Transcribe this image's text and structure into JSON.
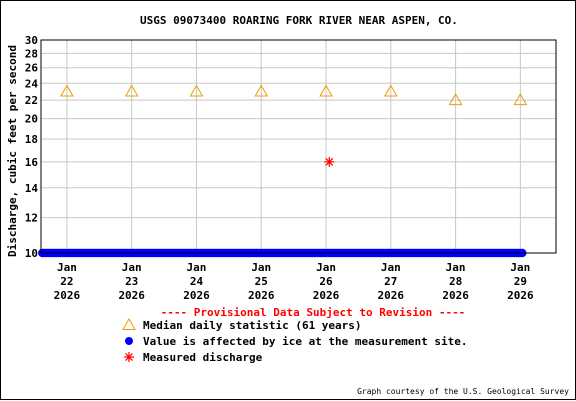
{
  "chart_data": {
    "type": "scatter",
    "title": "USGS 09073400 ROARING FORK RIVER NEAR ASPEN, CO.",
    "ylabel": "Discharge, cubic feet per second",
    "xlabel": "",
    "y_scale": "log",
    "ylim": [
      10,
      30
    ],
    "y_ticks": [
      10,
      12,
      14,
      16,
      18,
      20,
      22,
      24,
      26,
      28,
      30
    ],
    "y_tick_labels": [
      "10",
      "12",
      "14",
      "16",
      "18",
      "20",
      "22",
      "24",
      "26",
      "28",
      "30"
    ],
    "x_ticks": [
      {
        "day": 22,
        "line1": "Jan",
        "line2": "22",
        "line3": "2026"
      },
      {
        "day": 23,
        "line1": "Jan",
        "line2": "23",
        "line3": "2026"
      },
      {
        "day": 24,
        "line1": "Jan",
        "line2": "24",
        "line3": "2026"
      },
      {
        "day": 25,
        "line1": "Jan",
        "line2": "25",
        "line3": "2026"
      },
      {
        "day": 26,
        "line1": "Jan",
        "line2": "26",
        "line3": "2026"
      },
      {
        "day": 27,
        "line1": "Jan",
        "line2": "27",
        "line3": "2026"
      },
      {
        "day": 28,
        "line1": "Jan",
        "line2": "28",
        "line3": "2026"
      },
      {
        "day": 29,
        "line1": "Jan",
        "line2": "29",
        "line3": "2026"
      }
    ],
    "xlim": [
      21.6,
      29.55
    ],
    "grid": true,
    "series": [
      {
        "name": "Median daily statistic (61 years)",
        "marker": "triangle",
        "color": "#e8a000",
        "x": [
          22,
          23,
          24,
          25,
          26,
          27,
          28,
          29
        ],
        "y": [
          23,
          23,
          23,
          23,
          23,
          23,
          22,
          22
        ]
      },
      {
        "name": "Value is affected by ice at the measurement site.",
        "marker": "dot",
        "color": "#0000ff",
        "x_range": [
          21.62,
          29.05
        ],
        "y": 10
      },
      {
        "name": "Measured discharge",
        "marker": "asterisk",
        "color": "#ff0000",
        "x": [
          26.05
        ],
        "y": [
          16
        ]
      }
    ],
    "provisional_note": "---- Provisional Data Subject to Revision ----",
    "credit": "Graph courtesy of the U.S. Geological Survey"
  }
}
